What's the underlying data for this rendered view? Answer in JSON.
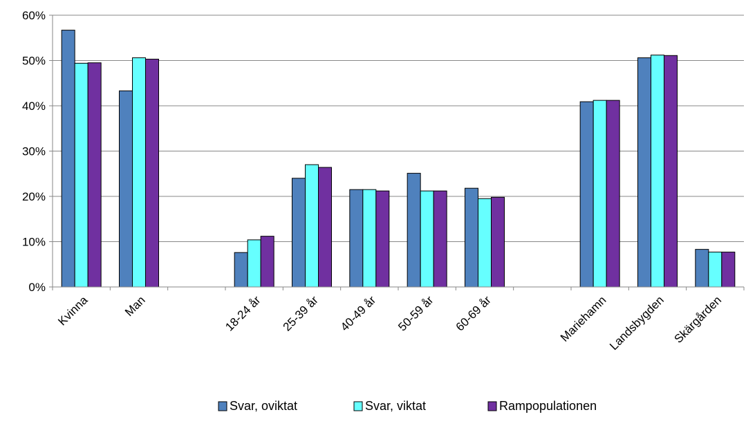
{
  "chart_data": {
    "type": "bar",
    "categories": [
      "Kvinna",
      "Man",
      "",
      "18-24 år",
      "25-39 år",
      "40-49 år",
      "50-59 år",
      "60-69 år",
      "",
      "Mariehamn",
      "Landsbygden",
      "Skärgården"
    ],
    "series": [
      {
        "name": "Svar, oviktat",
        "color": "#4F81BD",
        "values": [
          56.7,
          43.3,
          null,
          7.6,
          24.0,
          21.5,
          25.1,
          21.8,
          null,
          40.9,
          50.6,
          8.3
        ]
      },
      {
        "name": "Svar, viktat",
        "color": "#66FFFF",
        "values": [
          49.4,
          50.6,
          null,
          10.4,
          27.0,
          21.5,
          21.2,
          19.5,
          null,
          41.2,
          51.2,
          7.7
        ]
      },
      {
        "name": "Rampopulationen",
        "color": "#7030A0",
        "values": [
          49.5,
          50.3,
          null,
          11.2,
          26.4,
          21.2,
          21.2,
          19.8,
          null,
          41.2,
          51.1,
          7.7
        ]
      }
    ],
    "yticks": [
      "0%",
      "10%",
      "20%",
      "30%",
      "40%",
      "50%",
      "60%"
    ],
    "ylim": [
      0,
      60
    ],
    "grid": true,
    "legend_position": "bottom"
  }
}
